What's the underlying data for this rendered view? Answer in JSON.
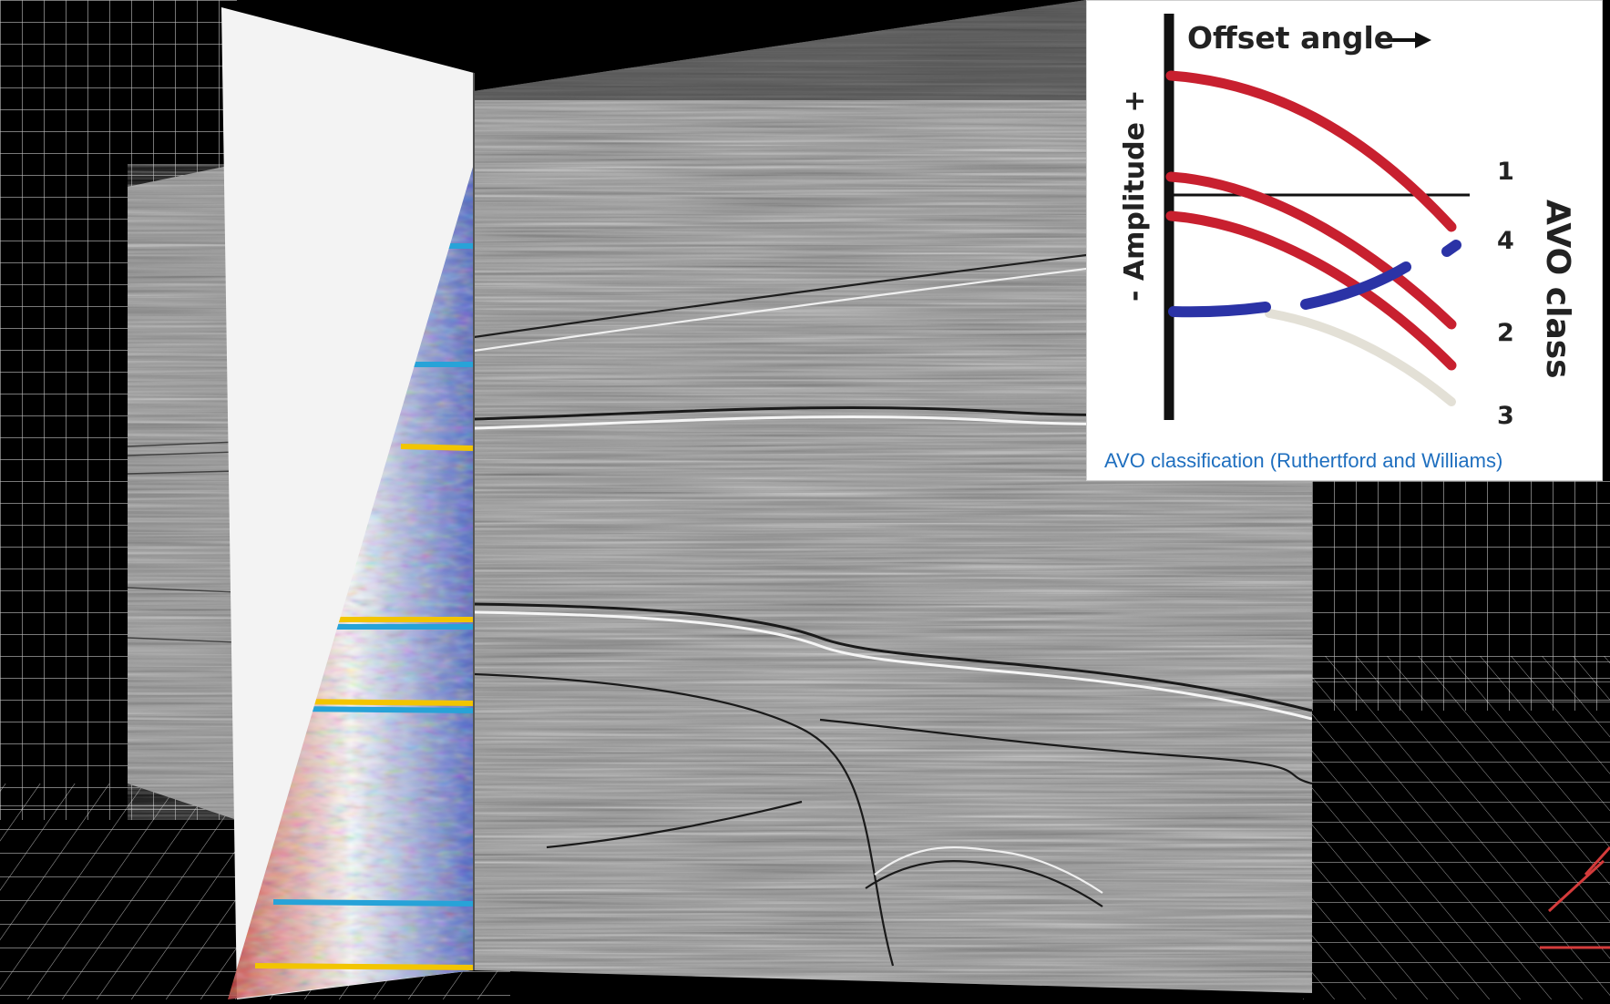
{
  "diagram": {
    "x_axis_label": "Offset angle",
    "y_axis_label": "- Amplitude +",
    "side_label": "AVO class",
    "class_labels": [
      "1",
      "4",
      "2",
      "3"
    ],
    "caption": "AVO classification (Ruthertford and Williams)"
  },
  "colors": {
    "positive_curve": "#c8202f",
    "negative_curve": "#2b33a6",
    "faded_curve": "#e3e0d6",
    "caption_text": "#1f6fbf",
    "seismic_gray": "#8a8a8a",
    "grid_line": "#ffffff"
  }
}
